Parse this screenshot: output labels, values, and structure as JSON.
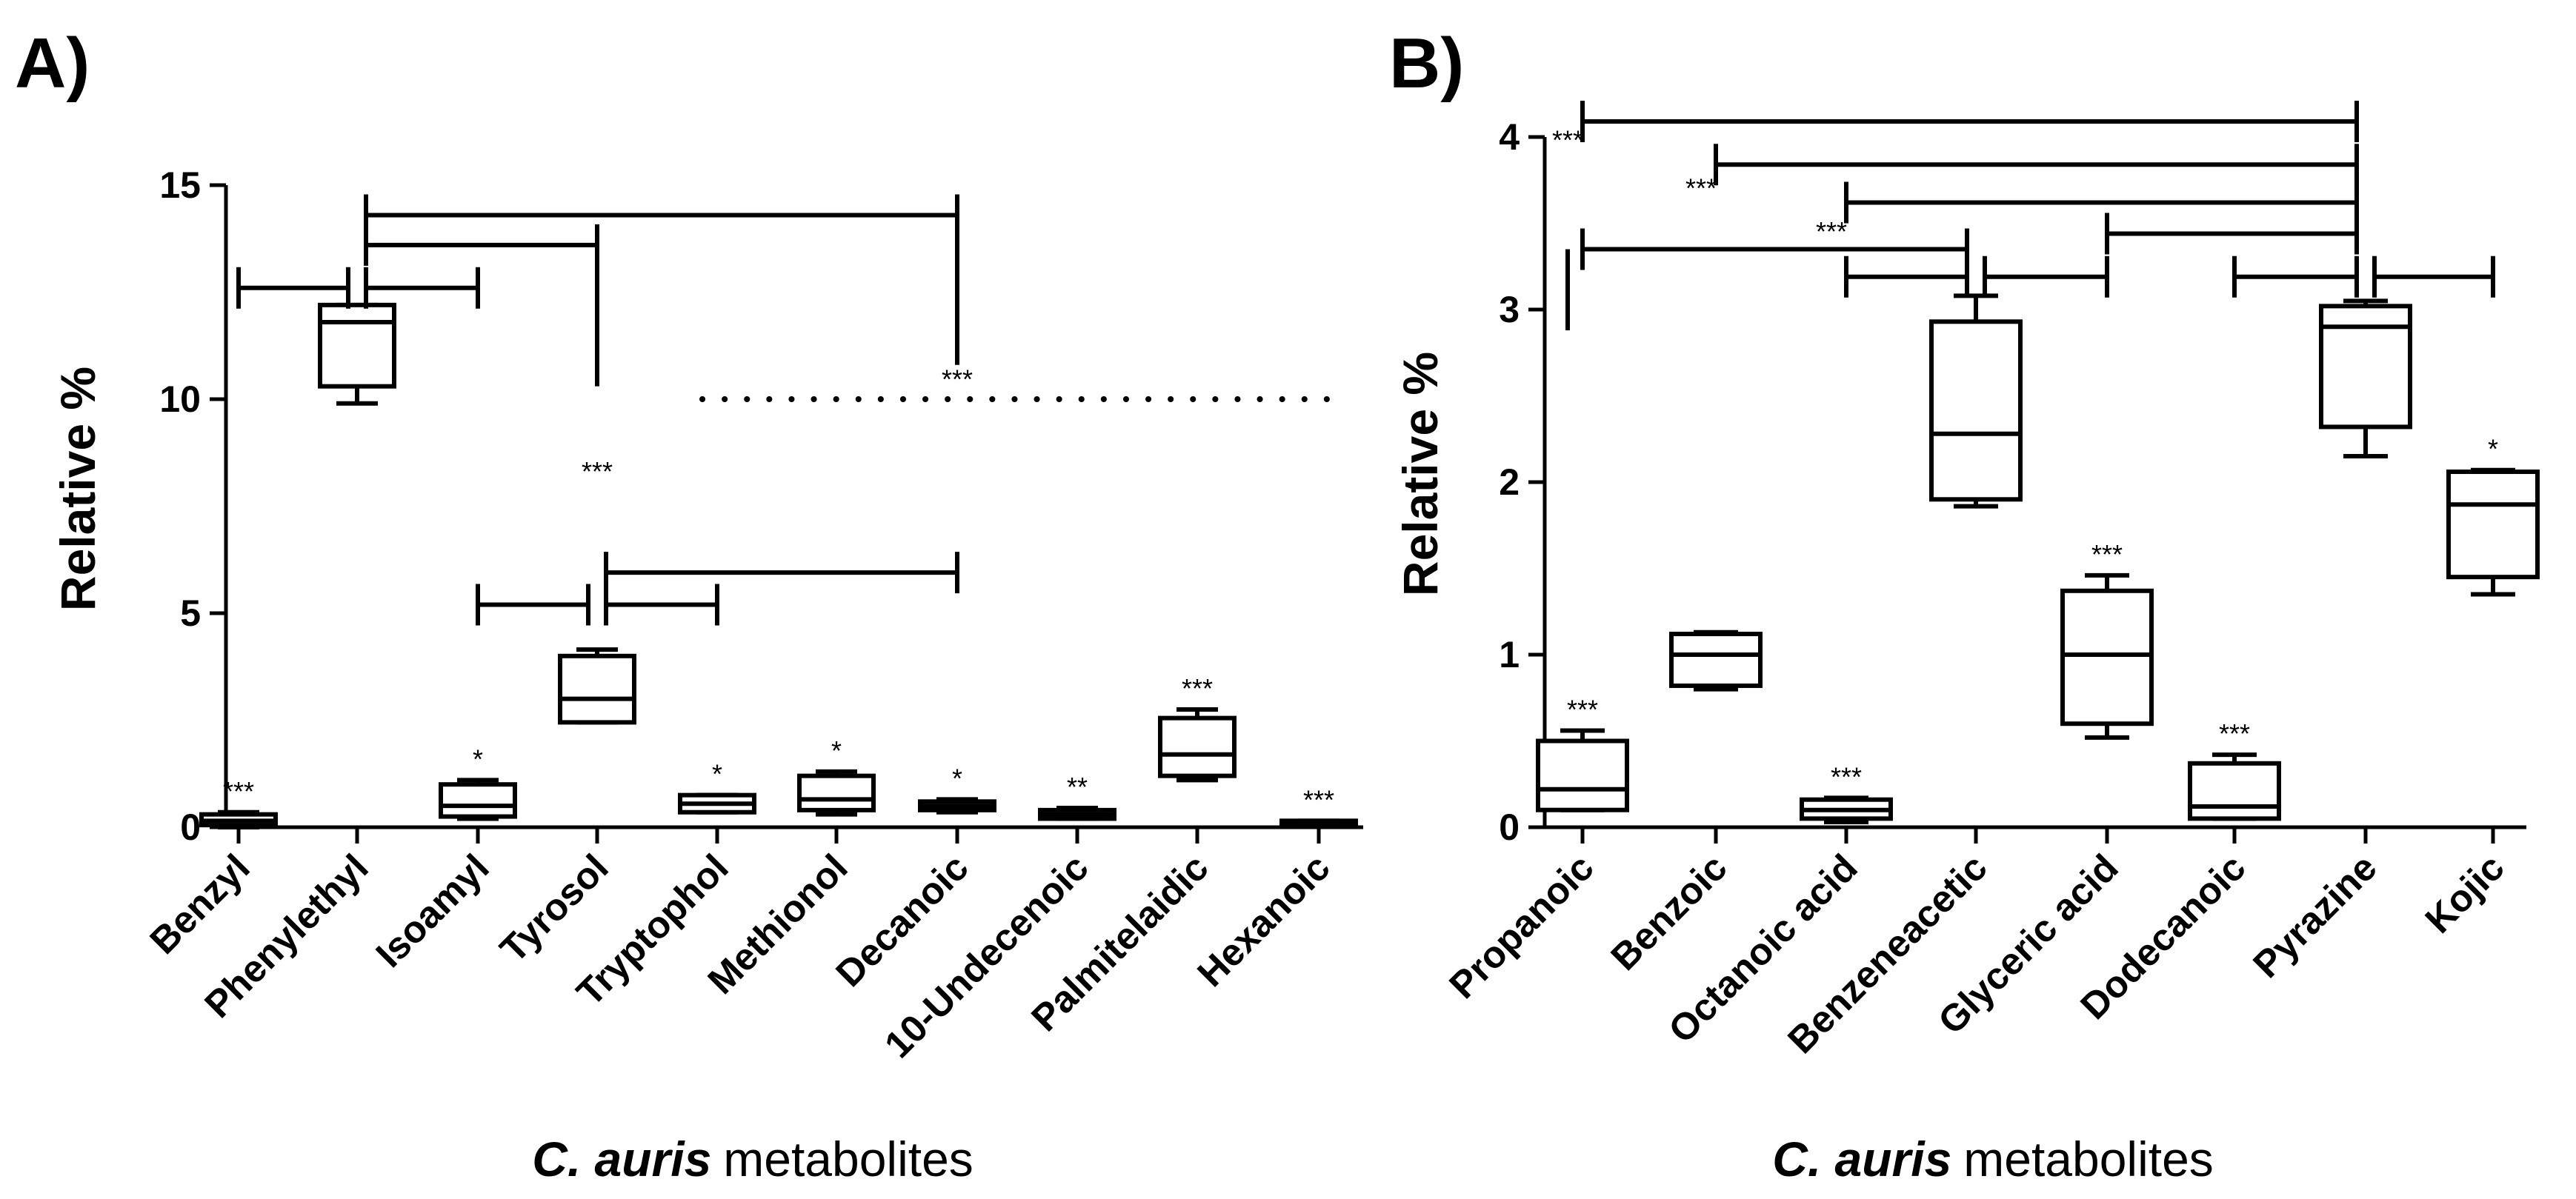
{
  "chart_data": [
    {
      "panel": "A)",
      "type": "box",
      "ylabel": "Relative %",
      "xlabel": {
        "italic": "C. auris",
        "rest": "metabolites"
      },
      "ylim": [
        0,
        15
      ],
      "yticks": [
        0,
        5,
        10,
        15
      ],
      "categories": [
        "Benzyl",
        "Phenylethyl",
        "Isoamyl",
        "Tyrosol",
        "Tryptophol",
        "Methionol",
        "Decanoic",
        "10-Undecenoic",
        "Palmitelaidic",
        "Hexanoic"
      ],
      "boxes": [
        {
          "category": "Benzyl",
          "min": 0.0,
          "q1": 0.05,
          "median": 0.15,
          "q3": 0.3,
          "max": 0.35,
          "sig": "***"
        },
        {
          "category": "Phenylethyl",
          "min": 9.9,
          "q1": 10.3,
          "median": 11.8,
          "q3": 12.2,
          "max": 12.2,
          "sig": ""
        },
        {
          "category": "Isoamyl",
          "min": 0.2,
          "q1": 0.25,
          "median": 0.5,
          "q3": 1.0,
          "max": 1.1,
          "sig": "*"
        },
        {
          "category": "Tyrosol",
          "min": 2.45,
          "q1": 2.45,
          "median": 3.0,
          "q3": 4.0,
          "max": 4.15,
          "sig": ""
        },
        {
          "category": "Tryptophol",
          "min": 0.35,
          "q1": 0.35,
          "median": 0.55,
          "q3": 0.75,
          "max": 0.75,
          "sig": "*"
        },
        {
          "category": "Methionol",
          "min": 0.3,
          "q1": 0.4,
          "median": 0.65,
          "q3": 1.2,
          "max": 1.3,
          "sig": "*"
        },
        {
          "category": "Decanoic",
          "min": 0.35,
          "q1": 0.4,
          "median": 0.5,
          "q3": 0.6,
          "max": 0.65,
          "sig": "*"
        },
        {
          "category": "10-Undecenoic",
          "min": 0.2,
          "q1": 0.2,
          "median": 0.3,
          "q3": 0.4,
          "max": 0.45,
          "sig": "**"
        },
        {
          "category": "Palmitelaidic",
          "min": 1.1,
          "q1": 1.2,
          "median": 1.7,
          "q3": 2.55,
          "max": 2.75,
          "sig": "***"
        },
        {
          "category": "Hexanoic",
          "min": 0.05,
          "q1": 0.05,
          "median": 0.1,
          "q3": 0.15,
          "max": 0.15,
          "sig": "***"
        }
      ],
      "brackets": [
        {
          "from": "Phenylethyl",
          "to": "Benzyl",
          "y": 12.6
        },
        {
          "from": "Phenylethyl",
          "to": "Isoamyl",
          "y": 12.6
        },
        {
          "from": "Phenylethyl",
          "to": "Tyrosol",
          "y": 13.6
        },
        {
          "from": "Phenylethyl",
          "to": "Decanoic",
          "y": 14.3
        },
        {
          "from": "Tyrosol",
          "to": "Isoamyl",
          "y": 5.2
        },
        {
          "from": "Tyrosol",
          "to": "Tryptophol",
          "y": 5.2
        },
        {
          "from": "Tyrosol",
          "to": "Decanoic",
          "y": 5.95
        }
      ],
      "dotted_line": {
        "from": "Tryptophol",
        "to": "Hexanoic",
        "y": 10.0
      },
      "annotations": [
        {
          "text": "***",
          "at": "Decanoic",
          "y": 10.25
        },
        {
          "text": "***",
          "at": "Tyrosol",
          "y": 8.1
        }
      ]
    },
    {
      "panel": "B)",
      "type": "box",
      "ylabel": "Relative %",
      "xlabel": {
        "italic": "C. auris",
        "rest": "metabolites"
      },
      "ylim": [
        0,
        4
      ],
      "yticks": [
        0,
        1,
        2,
        3,
        4
      ],
      "categories": [
        "Propanoic",
        "Benzoic",
        "Octanoic acid",
        "Benzeneacetic",
        "Glyceric acid",
        "Dodecanoic",
        "Pyrazine",
        "Kojic"
      ],
      "boxes": [
        {
          "category": "Propanoic",
          "min": 0.1,
          "q1": 0.1,
          "median": 0.22,
          "q3": 0.5,
          "max": 0.56,
          "sig": "***"
        },
        {
          "category": "Benzoic",
          "min": 0.8,
          "q1": 0.82,
          "median": 1.0,
          "q3": 1.12,
          "max": 1.13,
          "sig": ""
        },
        {
          "category": "Octanoic acid",
          "min": 0.03,
          "q1": 0.05,
          "median": 0.1,
          "q3": 0.16,
          "max": 0.17,
          "sig": "***"
        },
        {
          "category": "Benzeneacetic",
          "min": 1.86,
          "q1": 1.9,
          "median": 2.28,
          "q3": 2.93,
          "max": 3.08,
          "sig": ""
        },
        {
          "category": "Glyceric acid",
          "min": 0.52,
          "q1": 0.6,
          "median": 1.0,
          "q3": 1.37,
          "max": 1.46,
          "sig": "***"
        },
        {
          "category": "Dodecanoic",
          "min": 0.05,
          "q1": 0.05,
          "median": 0.12,
          "q3": 0.37,
          "max": 0.42,
          "sig": "***"
        },
        {
          "category": "Pyrazine",
          "min": 2.15,
          "q1": 2.32,
          "median": 2.9,
          "q3": 3.02,
          "max": 3.05,
          "sig": ""
        },
        {
          "category": "Kojic",
          "min": 1.35,
          "q1": 1.45,
          "median": 1.87,
          "q3": 2.06,
          "max": 2.07,
          "sig": "*"
        }
      ],
      "brackets": [
        {
          "from": "Pyrazine",
          "to": "Propanoic",
          "y": 4.09
        },
        {
          "from": "Pyrazine",
          "to": "Benzoic",
          "y": 3.84
        },
        {
          "from": "Pyrazine",
          "to": "Octanoic acid",
          "y": 3.62
        },
        {
          "from": "Pyrazine",
          "to": "Glyceric acid",
          "y": 3.44
        },
        {
          "from": "Benzeneacetic",
          "to": "Propanoic",
          "y": 3.35
        },
        {
          "from": "Benzeneacetic",
          "to": "Octanoic acid",
          "y": 3.19
        },
        {
          "from": "Benzeneacetic",
          "to": "Glyceric acid",
          "y": 3.19
        },
        {
          "from": "Pyrazine",
          "to": "Dodecanoic",
          "y": 3.19
        },
        {
          "from": "Pyrazine",
          "to": "Kojic",
          "y": 3.19
        }
      ],
      "annotations": [
        {
          "text": "***",
          "at": "Propanoic",
          "y": 3.93
        },
        {
          "text": "***",
          "at": "Benzoic",
          "y": 3.65
        },
        {
          "text": "***",
          "at": "Octanoic acid",
          "y": 3.4
        }
      ]
    }
  ]
}
